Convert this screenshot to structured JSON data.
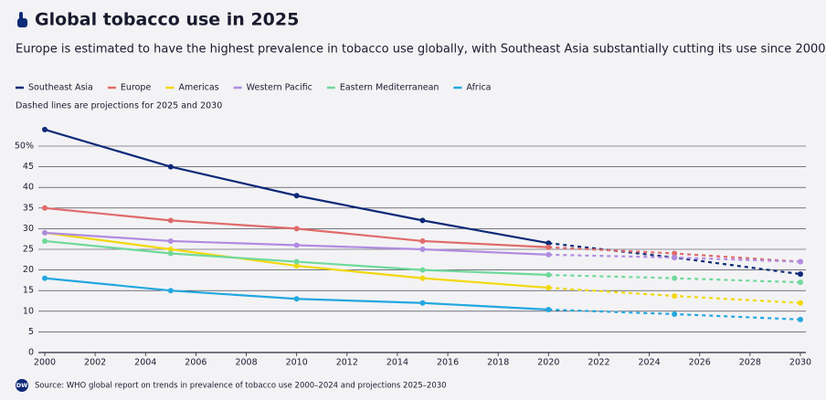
{
  "chart_data": {
    "type": "line",
    "title": "Global tobacco use in 2025",
    "subtitle": "Europe is estimated to have the highest prevalence in tobacco use globally, with Southeast Asia substantially cutting its use since 2000",
    "note": "Dashed lines are projections for 2025 and 2030",
    "source": "Source: WHO global report on trends in prevalence of tobacco use 2000–2024 and projections 2025–2030",
    "logo": "DW",
    "x": [
      2000,
      2005,
      2010,
      2015,
      2020,
      2025,
      2030
    ],
    "projection_from": 2020,
    "series": [
      {
        "name": "Southeast Asia",
        "color": "#0d2a78",
        "values": [
          54,
          45,
          38,
          32,
          26.5,
          23,
          19
        ]
      },
      {
        "name": "Europe",
        "color": "#e06a6a",
        "values": [
          35,
          32,
          30,
          27,
          25.5,
          24,
          22
        ]
      },
      {
        "name": "Americas",
        "color": "#f2d80c",
        "values": [
          29,
          25,
          21,
          18,
          15.7,
          13.7,
          12
        ]
      },
      {
        "name": "Western Pacific",
        "color": "#b08be0",
        "values": [
          29,
          27,
          26,
          25,
          23.7,
          23,
          22
        ]
      },
      {
        "name": "Eastern Mediterranean",
        "color": "#6fd99a",
        "values": [
          27,
          24,
          22,
          20,
          18.8,
          18,
          17
        ]
      },
      {
        "name": "Africa",
        "color": "#22a7e0",
        "values": [
          18,
          15,
          13,
          12,
          10.4,
          9.3,
          8
        ]
      }
    ],
    "xlim": [
      2000,
      2030
    ],
    "xticks": [
      2000,
      2002,
      2004,
      2006,
      2008,
      2010,
      2012,
      2014,
      2016,
      2018,
      2020,
      2022,
      2024,
      2026,
      2028,
      2030
    ],
    "ylim": [
      0,
      55
    ],
    "yticks": [
      0,
      5,
      10,
      15,
      20,
      25,
      30,
      35,
      40,
      45,
      {
        "value": 50,
        "label": "50%"
      }
    ],
    "grid": true
  }
}
